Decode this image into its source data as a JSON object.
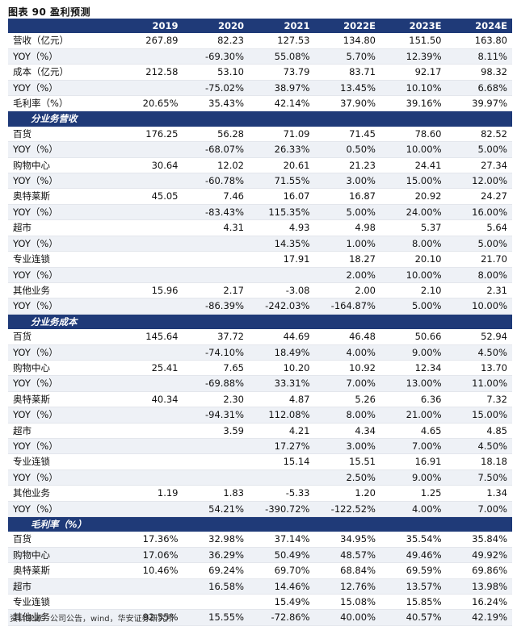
{
  "title": "图表 90  盈利预测",
  "columns": [
    "",
    "2019",
    "2020",
    "2021",
    "2022E",
    "2023E",
    "2024E"
  ],
  "rows": [
    {
      "type": "data",
      "label": "营收（亿元）",
      "values": [
        "267.89",
        "82.23",
        "127.53",
        "134.80",
        "151.50",
        "163.80"
      ]
    },
    {
      "type": "data",
      "label": "YOY（%）",
      "values": [
        "",
        "-69.30%",
        "55.08%",
        "5.70%",
        "12.39%",
        "8.11%"
      ]
    },
    {
      "type": "data",
      "label": "成本（亿元）",
      "values": [
        "212.58",
        "53.10",
        "73.79",
        "83.71",
        "92.17",
        "98.32"
      ]
    },
    {
      "type": "data",
      "label": "YOY（%）",
      "values": [
        "",
        "-75.02%",
        "38.97%",
        "13.45%",
        "10.10%",
        "6.68%"
      ]
    },
    {
      "type": "data",
      "label": "毛利率（%）",
      "values": [
        "20.65%",
        "35.43%",
        "42.14%",
        "37.90%",
        "39.16%",
        "39.97%"
      ]
    },
    {
      "type": "section",
      "label": "分业务营收"
    },
    {
      "type": "data",
      "label": "百货",
      "values": [
        "176.25",
        "56.28",
        "71.09",
        "71.45",
        "78.60",
        "82.52"
      ]
    },
    {
      "type": "data",
      "label": "YOY（%）",
      "values": [
        "",
        "-68.07%",
        "26.33%",
        "0.50%",
        "10.00%",
        "5.00%"
      ]
    },
    {
      "type": "data",
      "label": "购物中心",
      "values": [
        "30.64",
        "12.02",
        "20.61",
        "21.23",
        "24.41",
        "27.34"
      ]
    },
    {
      "type": "data",
      "label": "YOY（%）",
      "values": [
        "",
        "-60.78%",
        "71.55%",
        "3.00%",
        "15.00%",
        "12.00%"
      ]
    },
    {
      "type": "data",
      "label": "奥特莱斯",
      "values": [
        "45.05",
        "7.46",
        "16.07",
        "16.87",
        "20.92",
        "24.27"
      ]
    },
    {
      "type": "data",
      "label": "YOY（%）",
      "values": [
        "",
        "-83.43%",
        "115.35%",
        "5.00%",
        "24.00%",
        "16.00%"
      ]
    },
    {
      "type": "data",
      "label": "超市",
      "values": [
        "",
        "4.31",
        "4.93",
        "4.98",
        "5.37",
        "5.64"
      ]
    },
    {
      "type": "data",
      "label": "YOY（%）",
      "values": [
        "",
        "",
        "14.35%",
        "1.00%",
        "8.00%",
        "5.00%"
      ]
    },
    {
      "type": "data",
      "label": "专业连锁",
      "values": [
        "",
        "",
        "17.91",
        "18.27",
        "20.10",
        "21.70"
      ]
    },
    {
      "type": "data",
      "label": "YOY（%）",
      "values": [
        "",
        "",
        "",
        "2.00%",
        "10.00%",
        "8.00%"
      ]
    },
    {
      "type": "data",
      "label": "其他业务",
      "values": [
        "15.96",
        "2.17",
        "-3.08",
        "2.00",
        "2.10",
        "2.31"
      ]
    },
    {
      "type": "data",
      "label": "YOY（%）",
      "values": [
        "",
        "-86.39%",
        "-242.03%",
        "-164.87%",
        "5.00%",
        "10.00%"
      ]
    },
    {
      "type": "section",
      "label": "分业务成本"
    },
    {
      "type": "data",
      "label": "百货",
      "values": [
        "145.64",
        "37.72",
        "44.69",
        "46.48",
        "50.66",
        "52.94"
      ]
    },
    {
      "type": "data",
      "label": "YOY（%）",
      "values": [
        "",
        "-74.10%",
        "18.49%",
        "4.00%",
        "9.00%",
        "4.50%"
      ]
    },
    {
      "type": "data",
      "label": "购物中心",
      "values": [
        "25.41",
        "7.65",
        "10.20",
        "10.92",
        "12.34",
        "13.70"
      ]
    },
    {
      "type": "data",
      "label": "YOY（%）",
      "values": [
        "",
        "-69.88%",
        "33.31%",
        "7.00%",
        "13.00%",
        "11.00%"
      ]
    },
    {
      "type": "data",
      "label": "奥特莱斯",
      "values": [
        "40.34",
        "2.30",
        "4.87",
        "5.26",
        "6.36",
        "7.32"
      ]
    },
    {
      "type": "data",
      "label": "YOY（%）",
      "values": [
        "",
        "-94.31%",
        "112.08%",
        "8.00%",
        "21.00%",
        "15.00%"
      ]
    },
    {
      "type": "data",
      "label": "超市",
      "values": [
        "",
        "3.59",
        "4.21",
        "4.34",
        "4.65",
        "4.85"
      ]
    },
    {
      "type": "data",
      "label": "YOY（%）",
      "values": [
        "",
        "",
        "17.27%",
        "3.00%",
        "7.00%",
        "4.50%"
      ]
    },
    {
      "type": "data",
      "label": "专业连锁",
      "values": [
        "",
        "",
        "15.14",
        "15.51",
        "16.91",
        "18.18"
      ]
    },
    {
      "type": "data",
      "label": "YOY（%）",
      "values": [
        "",
        "",
        "",
        "2.50%",
        "9.00%",
        "7.50%"
      ]
    },
    {
      "type": "data",
      "label": "其他业务",
      "values": [
        "1.19",
        "1.83",
        "-5.33",
        "1.20",
        "1.25",
        "1.34"
      ]
    },
    {
      "type": "data",
      "label": "YOY（%）",
      "values": [
        "",
        "54.21%",
        "-390.72%",
        "-122.52%",
        "4.00%",
        "7.00%"
      ]
    },
    {
      "type": "section",
      "label": "毛利率（%）"
    },
    {
      "type": "data",
      "label": "百货",
      "values": [
        "17.36%",
        "32.98%",
        "37.14%",
        "34.95%",
        "35.54%",
        "35.84%"
      ]
    },
    {
      "type": "data",
      "label": "购物中心",
      "values": [
        "17.06%",
        "36.29%",
        "50.49%",
        "48.57%",
        "49.46%",
        "49.92%"
      ]
    },
    {
      "type": "data",
      "label": "奥特莱斯",
      "values": [
        "10.46%",
        "69.24%",
        "69.70%",
        "68.84%",
        "69.59%",
        "69.86%"
      ]
    },
    {
      "type": "data",
      "label": "超市",
      "values": [
        "",
        "16.58%",
        "14.46%",
        "12.76%",
        "13.57%",
        "13.98%"
      ]
    },
    {
      "type": "data",
      "label": "专业连锁",
      "values": [
        "",
        "",
        "15.49%",
        "15.08%",
        "15.85%",
        "16.24%"
      ]
    },
    {
      "type": "data",
      "label": "其他业务",
      "values": [
        "92.55%",
        "15.55%",
        "-72.86%",
        "40.00%",
        "40.57%",
        "42.19%"
      ]
    }
  ],
  "source": "资料来源：公司公告，wind，华安证券研究所"
}
